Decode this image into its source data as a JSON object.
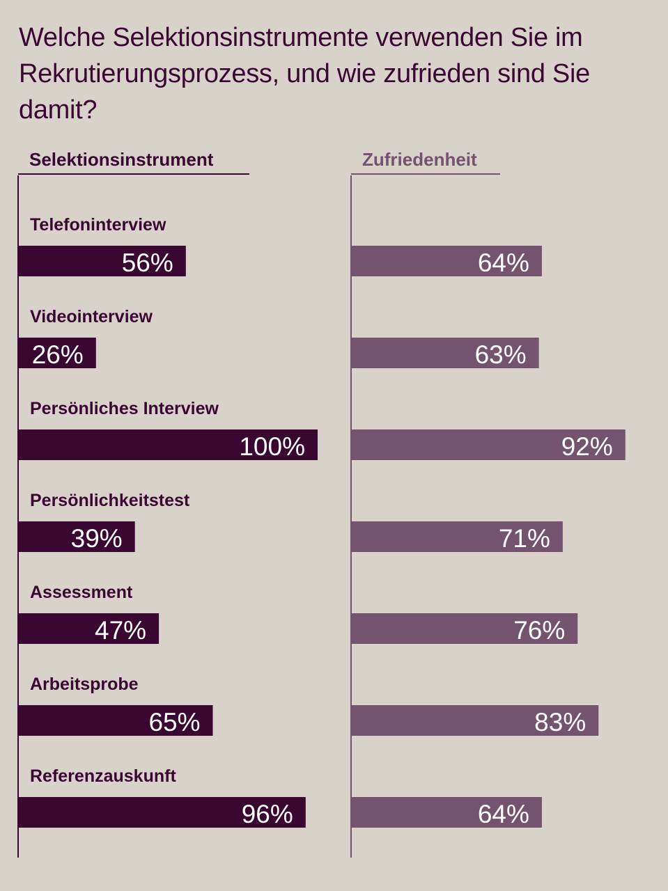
{
  "title": "Welche Selektionsinstrumente verwenden Sie im Rekrutierungsprozess, und wie zufrieden sind Sie damit?",
  "colors": {
    "background": "#d9d2cb",
    "usage": "#3a0733",
    "satisfaction": "#73536e"
  },
  "chart_data": {
    "type": "bar",
    "orientation": "horizontal",
    "title": "Welche Selektionsinstrumente verwenden Sie im Rekrutierungsprozess, und wie zufrieden sind Sie damit?",
    "categories": [
      "Telefoninterview",
      "Videointerview",
      "Persönliches Interview",
      "Persönlichkeitstest",
      "Assessment",
      "Arbeitsprobe",
      "Referenzauskunft"
    ],
    "series": [
      {
        "name": "Selektionsinstrument",
        "values": [
          56,
          26,
          100,
          39,
          47,
          65,
          96
        ],
        "labels": [
          "56%",
          "26%",
          "100%",
          "39%",
          "47%",
          "65%",
          "96%"
        ],
        "color": "#3a0733"
      },
      {
        "name": "Zufriedenheit",
        "values": [
          64,
          63,
          92,
          71,
          76,
          83,
          64
        ],
        "labels": [
          "64%",
          "63%",
          "92%",
          "71%",
          "76%",
          "83%",
          "64%"
        ],
        "color": "#73536e"
      }
    ],
    "xlim": [
      0,
      100
    ],
    "grid": false,
    "legend": "top"
  }
}
